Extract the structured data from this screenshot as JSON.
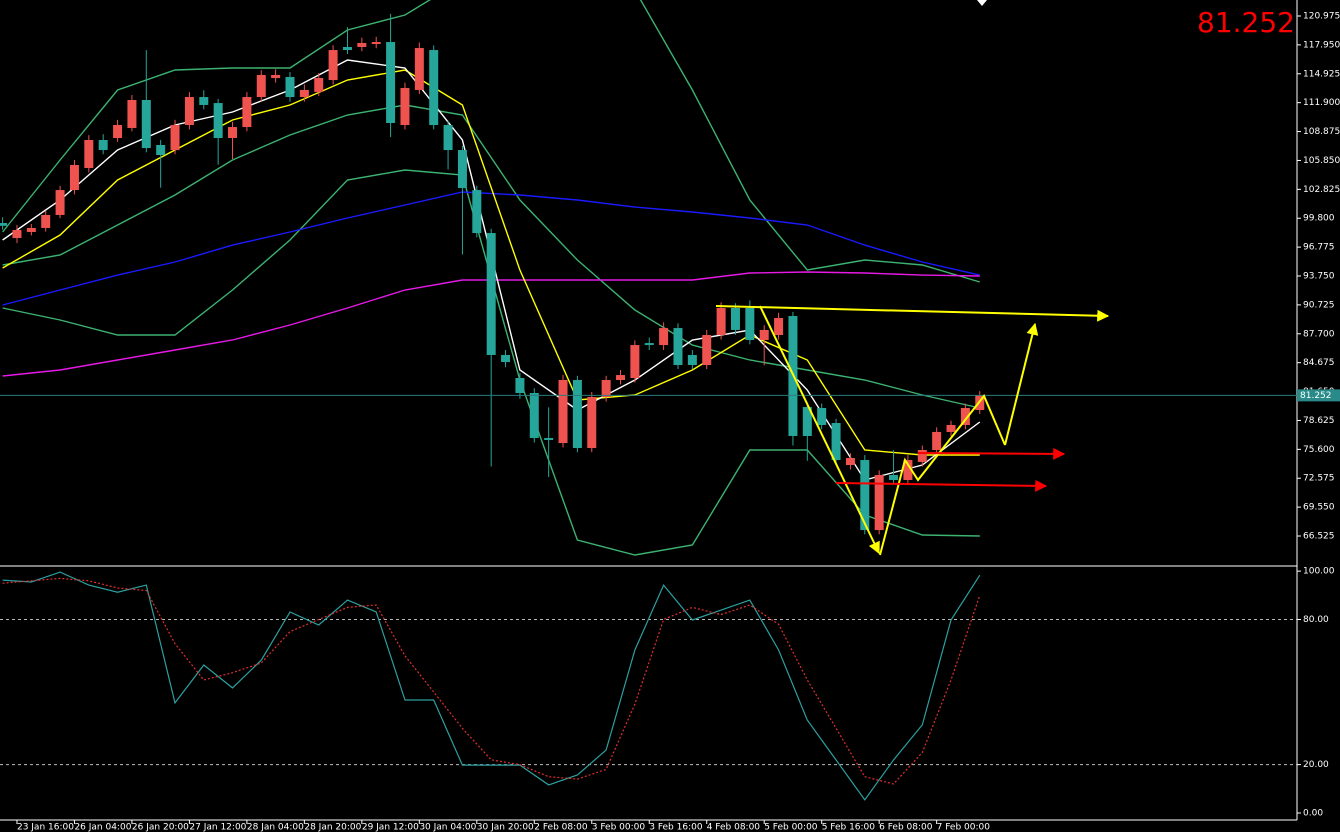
{
  "chart_data": [
    {
      "type": "candlestick",
      "categories": [
        null,
        "23 Jan 16:00",
        null,
        null,
        null,
        "26 Jan 04:00",
        null,
        null,
        null,
        "26 Jan 20:00",
        null,
        null,
        null,
        "27 Jan 12:00",
        null,
        null,
        null,
        "28 Jan 04:00",
        null,
        null,
        null,
        "28 Jan 20:00",
        null,
        null,
        null,
        "29 Jan 12:00",
        null,
        null,
        null,
        "30 Jan 04:00",
        null,
        null,
        null,
        "30 Jan 20:00",
        null,
        null,
        null,
        "2 Feb 08:00",
        null,
        null,
        null,
        "3 Feb 00:00",
        null,
        null,
        null,
        "3 Feb 16:00",
        null,
        null,
        null,
        "4 Feb 08:00",
        null,
        null,
        null,
        "5 Feb 00:00",
        null,
        null,
        null,
        "5 Feb 16:00",
        null,
        null,
        null,
        "6 Feb 08:00",
        null,
        null,
        null,
        "7 Feb 00:00",
        null,
        null,
        null
      ],
      "open": [
        99.3,
        97.73,
        98.36,
        98.78,
        100.14,
        102.75,
        105.06,
        107.99,
        108.2,
        109.25,
        112.18,
        107.47,
        106.94,
        109.56,
        112.49,
        111.86,
        108.2,
        109.35,
        112.49,
        114.48,
        114.59,
        112.49,
        113.02,
        114.27,
        117.73,
        117.73,
        118.04,
        118.25,
        109.56,
        113.23,
        117.41,
        109.56,
        106.94,
        102.75,
        98.25,
        85.48,
        83.07,
        81.5,
        76.79,
        76.26,
        82.86,
        75.74,
        81.08,
        82.86,
        83.07,
        86.73,
        86.52,
        88.3,
        85.48,
        84.43,
        87.57,
        90.4,
        90.4,
        87.05,
        87.57,
        89.56,
        80.03,
        79.93,
        78.36,
        73.96,
        74.48,
        67.15,
        72.91,
        72.39,
        74.28,
        75.53,
        77.42,
        78.15,
        79.72
      ],
      "high": [
        99.9,
        99.1,
        99.2,
        100.6,
        103.2,
        105.9,
        108.5,
        108.6,
        110.1,
        112.7,
        117.4,
        108.0,
        110.1,
        113.0,
        113.2,
        112.3,
        109.9,
        113.0,
        115.3,
        115.4,
        115.1,
        113.8,
        115.0,
        117.9,
        119.8,
        118.7,
        118.8,
        121.2,
        114.0,
        118.2,
        117.9,
        110.0,
        107.4,
        103.2,
        98.7,
        86.0,
        83.6,
        82.0,
        80.0,
        83.4,
        83.3,
        81.6,
        83.3,
        83.9,
        87.0,
        87.3,
        88.9,
        88.8,
        86.0,
        88.1,
        91.0,
        90.9,
        91.2,
        88.6,
        89.9,
        90.0,
        80.5,
        80.4,
        78.8,
        75.2,
        75.0,
        73.4,
        75.5,
        75.0,
        76.0,
        77.9,
        78.6,
        80.4,
        81.7
      ],
      "low": [
        98.6,
        97.2,
        98.0,
        98.4,
        99.8,
        102.3,
        104.6,
        106.5,
        107.8,
        108.9,
        106.7,
        103.0,
        106.5,
        109.1,
        111.2,
        105.4,
        106.0,
        108.9,
        112.0,
        114.0,
        112.0,
        112.0,
        112.6,
        113.8,
        117.0,
        117.3,
        117.6,
        108.3,
        109.1,
        112.8,
        109.1,
        104.9,
        96.0,
        97.8,
        73.8,
        84.2,
        80.9,
        76.3,
        72.7,
        75.8,
        75.3,
        75.3,
        80.6,
        82.4,
        82.6,
        86.0,
        86.0,
        84.0,
        84.0,
        84.0,
        87.1,
        87.6,
        86.6,
        84.4,
        87.1,
        76.0,
        74.4,
        77.7,
        74.0,
        73.5,
        66.7,
        66.7,
        71.9,
        71.9,
        73.8,
        75.1,
        77.0,
        77.7,
        79.3
      ],
      "close": [
        99.0,
        98.57,
        98.78,
        100.14,
        102.75,
        105.37,
        107.99,
        106.94,
        109.56,
        112.18,
        107.15,
        106.42,
        109.56,
        112.49,
        111.66,
        108.2,
        109.35,
        112.49,
        114.8,
        114.8,
        112.49,
        113.23,
        114.48,
        117.41,
        117.41,
        118.15,
        118.25,
        109.77,
        113.44,
        117.62,
        109.56,
        106.94,
        102.96,
        98.25,
        85.48,
        84.74,
        81.5,
        76.79,
        76.58,
        82.86,
        75.74,
        81.08,
        82.86,
        83.38,
        86.52,
        86.52,
        88.3,
        84.43,
        84.43,
        87.57,
        90.4,
        88.1,
        87.05,
        88.1,
        89.35,
        77.0,
        77.0,
        78.15,
        74.48,
        74.69,
        67.15,
        72.91,
        72.39,
        74.48,
        75.53,
        77.42,
        78.15,
        79.93,
        81.252
      ],
      "up_color": "#ef5350",
      "down_color": "#26a69a",
      "ylim": [
        63.49,
        122.65
      ],
      "yticks": [
        120.975,
        {
          "value": 117.95,
          "label": "117.950"
        },
        114.925,
        {
          "value": 111.9,
          "label": "111.900"
        },
        108.875,
        {
          "value": 105.85,
          "label": "105.850"
        },
        102.825,
        {
          "value": 99.8,
          "label": "99.800"
        },
        96.775,
        {
          "value": 93.75,
          "label": "93.750"
        },
        90.725,
        {
          "value": 87.7,
          "label": "87.700"
        },
        84.675,
        {
          "value": 81.65,
          "label": "81.650"
        },
        78.625,
        {
          "value": 75.6,
          "label": "75.600"
        },
        72.575,
        {
          "value": 69.55,
          "label": "69.550"
        },
        66.525
      ],
      "grid": false,
      "last_price": 81.252,
      "overlays": [
        {
          "color": "#3cb371",
          "values": [
            98.36,
            105.9,
            113.23,
            115.32,
            115.53,
            115.53,
            119.51,
            121.08,
            124.74,
            128.93,
            129.98,
            123.7,
            113.23,
            101.71,
            94.38,
            95.43,
            94.9,
            93.12
          ]
        },
        {
          "color": "#3cb371",
          "values": [
            94.9,
            95.95,
            99.09,
            102.23,
            105.9,
            108.51,
            110.61,
            111.66,
            110.61,
            101.71,
            95.43,
            90.19,
            86.52,
            84.95,
            83.91,
            82.86,
            81.29,
            79.93
          ]
        },
        {
          "color": "#3cb371",
          "values": [
            90.4,
            89.14,
            87.57,
            87.57,
            92.28,
            97.52,
            103.8,
            104.85,
            104.33,
            82.86,
            66.1,
            64.54,
            65.58,
            75.53,
            75.53,
            68.73,
            66.63,
            66.53
          ]
        },
        {
          "color": "#1a1aff",
          "values": [
            90.71,
            92.28,
            93.85,
            95.22,
            96.99,
            98.36,
            99.82,
            101.18,
            102.55,
            102.23,
            101.71,
            100.97,
            100.45,
            99.82,
            99.09,
            96.99,
            95.22,
            93.85
          ]
        },
        {
          "color": "#e619e6",
          "values": [
            83.28,
            83.91,
            84.95,
            86.0,
            87.05,
            88.62,
            90.4,
            92.28,
            93.33,
            93.33,
            93.33,
            93.33,
            93.33,
            94.06,
            94.17,
            94.06,
            93.85,
            93.75
          ]
        },
        {
          "color": "#ffff00",
          "values": [
            94.59,
            98.04,
            103.8,
            106.94,
            110.08,
            111.66,
            114.27,
            115.32,
            111.66,
            94.38,
            80.77,
            81.29,
            83.91,
            87.57,
            84.95,
            75.53,
            75.01,
            75.01
          ]
        },
        {
          "color": "#ffffff",
          "values": [
            97.52,
            101.71,
            106.94,
            109.56,
            110.92,
            113.23,
            116.37,
            115.53,
            107.99,
            83.91,
            79.72,
            82.86,
            87.05,
            88.1,
            81.81,
            72.39,
            73.96,
            78.46
          ]
        }
      ]
    },
    {
      "type": "line",
      "ylim": [
        -2.9,
        101.7
      ],
      "yticks": [
        {
          "value": 100,
          "label": "100.00"
        },
        {
          "value": 80,
          "label": "80.00"
        },
        {
          "value": 20,
          "label": "20.00"
        },
        {
          "value": 0,
          "label": "0.00"
        }
      ],
      "grid": true,
      "series": [
        {
          "color": "#2e9f9f",
          "dashed": false,
          "values": [
            96.3,
            95.5,
            99.6,
            94.2,
            91.3,
            94.2,
            45.5,
            61.2,
            51.7,
            63.2,
            83.1,
            77.7,
            88.0,
            83.1,
            46.7,
            46.7,
            19.8,
            19.8,
            19.8,
            11.6,
            15.7,
            26.0,
            67.4,
            94.2,
            79.8,
            83.9,
            88.0,
            67.4,
            38.4,
            21.9,
            5.4,
            21.9,
            36.4,
            79.8,
            98.3
          ]
        },
        {
          "color": "#e03030",
          "dashed": true,
          "values": [
            95,
            96,
            97,
            96,
            93,
            92,
            70,
            55,
            58,
            62,
            75,
            80,
            85,
            86,
            65,
            50,
            35,
            22,
            20,
            15,
            14,
            18,
            45,
            80,
            85,
            82,
            86,
            78,
            55,
            35,
            15,
            12,
            25,
            55,
            90
          ]
        }
      ]
    }
  ]
}
